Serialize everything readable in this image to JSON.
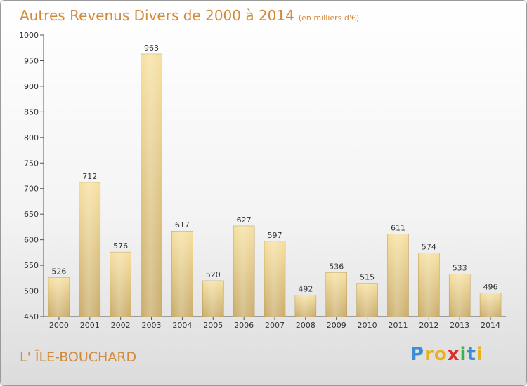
{
  "title": "Autres Revenus Divers de 2000 à 2014",
  "unit": "(en milliers d'€)",
  "location": "L' ÎLE-BOUCHARD",
  "logo": {
    "letters": [
      "P",
      "r",
      "o",
      "x",
      "i",
      "t",
      "i"
    ],
    "colors": [
      "#3a8fd6",
      "#e8b21e",
      "#e8b21e",
      "#d9302c",
      "#3db24a",
      "#3a8fd6",
      "#e8b21e"
    ]
  },
  "chart_data": {
    "type": "bar",
    "categories": [
      "2000",
      "2001",
      "2002",
      "2003",
      "2004",
      "2005",
      "2006",
      "2007",
      "2008",
      "2009",
      "2010",
      "2011",
      "2012",
      "2013",
      "2014"
    ],
    "values": [
      526,
      712,
      576,
      963,
      617,
      520,
      627,
      597,
      492,
      536,
      515,
      611,
      574,
      533,
      496
    ],
    "value_labels": [
      "526",
      "712",
      "576",
      "963",
      "617",
      "520",
      "627",
      "597",
      "492",
      "536",
      "515",
      "611",
      "574",
      "533",
      "496"
    ],
    "ylim": [
      450,
      1000
    ],
    "yticks": [
      450,
      500,
      550,
      600,
      650,
      700,
      750,
      800,
      850,
      900,
      950,
      1000
    ],
    "ytick_labels": [
      "450",
      "500",
      "550",
      "600",
      "650",
      "700",
      "750",
      "800",
      "850",
      "900",
      "950",
      "1000"
    ],
    "bar_color_light": "#f6e0a0",
    "bar_color_dark": "#c9ac6a",
    "grid": false
  }
}
